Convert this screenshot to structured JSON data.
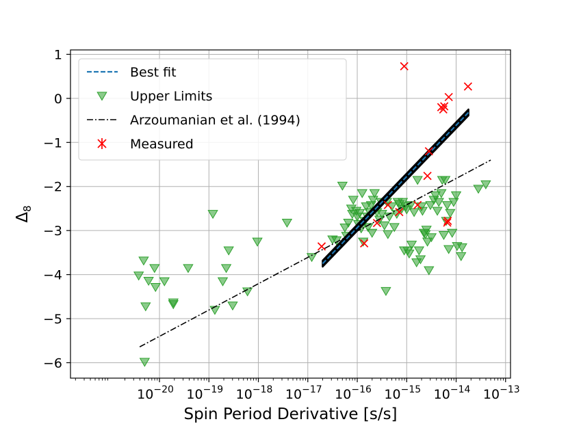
{
  "chart_data": {
    "type": "scatter",
    "title": "",
    "xlabel": "Spin Period Derivative [s/s]",
    "ylabel": "Δ8",
    "ylabel_main": "Δ",
    "ylabel_sub": "8",
    "xscale": "log",
    "xlim_exp": [
      -21.8,
      -12.9
    ],
    "ylim": [
      -6.35,
      1.1
    ],
    "grid": true,
    "x_ticks": [
      {
        "exp": -20,
        "label": "10",
        "sup": "−20"
      },
      {
        "exp": -19,
        "label": "10",
        "sup": "−19"
      },
      {
        "exp": -18,
        "label": "10",
        "sup": "−18"
      },
      {
        "exp": -17,
        "label": "10",
        "sup": "−17"
      },
      {
        "exp": -16,
        "label": "10",
        "sup": "−16"
      },
      {
        "exp": -15,
        "label": "10",
        "sup": "−15"
      },
      {
        "exp": -14,
        "label": "10",
        "sup": "−14"
      },
      {
        "exp": -13,
        "label": "10",
        "sup": "−13"
      }
    ],
    "y_ticks": [
      {
        "value": 1,
        "label": "1"
      },
      {
        "value": 0,
        "label": "0"
      },
      {
        "value": -1,
        "label": "−1"
      },
      {
        "value": -2,
        "label": "−2"
      },
      {
        "value": -3,
        "label": "−3"
      },
      {
        "value": -4,
        "label": "−4"
      },
      {
        "value": -5,
        "label": "−5"
      },
      {
        "value": -6,
        "label": "−6"
      }
    ],
    "legend": {
      "position": "top-left",
      "entries": [
        {
          "key": "best_fit",
          "label": "Best fit"
        },
        {
          "key": "upper_limits",
          "label": "Upper Limits"
        },
        {
          "key": "arzoumanian",
          "label": "Arzoumanian et al. (1994)"
        },
        {
          "key": "measured",
          "label": "Measured"
        }
      ]
    },
    "series": [
      {
        "name": "Best fit",
        "key": "best_fit",
        "kind": "band-line",
        "color": "#1f77b4",
        "band_color": "#000000",
        "x_exp": [
          -16.7,
          -13.75
        ],
        "y": [
          -3.75,
          -0.32
        ],
        "band_halfwidth": 0.07
      },
      {
        "name": "Upper Limits",
        "key": "upper_limits",
        "kind": "markers",
        "marker": "triangle-down",
        "color": "#2ca02c",
        "points": [
          [
            -20.42,
            -4.02
          ],
          [
            -20.32,
            -3.68
          ],
          [
            -20.28,
            -4.72
          ],
          [
            -20.3,
            -5.98
          ],
          [
            -20.22,
            -4.14
          ],
          [
            -20.1,
            -3.85
          ],
          [
            -20.08,
            -4.28
          ],
          [
            -19.9,
            -4.15
          ],
          [
            -19.72,
            -4.63
          ],
          [
            -19.72,
            -4.67
          ],
          [
            -19.42,
            -3.85
          ],
          [
            -18.92,
            -2.62
          ],
          [
            -18.88,
            -4.8
          ],
          [
            -18.72,
            -4.15
          ],
          [
            -18.65,
            -3.85
          ],
          [
            -18.6,
            -3.45
          ],
          [
            -18.52,
            -4.7
          ],
          [
            -18.22,
            -4.38
          ],
          [
            -18.02,
            -3.25
          ],
          [
            -17.42,
            -2.82
          ],
          [
            -16.92,
            -3.6
          ],
          [
            -16.5,
            -3.2
          ],
          [
            -16.42,
            -3.22
          ],
          [
            -16.3,
            -1.98
          ],
          [
            -16.25,
            -2.93
          ],
          [
            -16.22,
            -3.12
          ],
          [
            -16.18,
            -2.82
          ],
          [
            -16.12,
            -2.5
          ],
          [
            -16.1,
            -2.62
          ],
          [
            -16.08,
            -2.3
          ],
          [
            -16.02,
            -2.55
          ],
          [
            -16,
            -2.68
          ],
          [
            -15.98,
            -2.85
          ],
          [
            -15.95,
            -2.6
          ],
          [
            -15.92,
            -2.95
          ],
          [
            -15.9,
            -2.15
          ],
          [
            -15.88,
            -3.25
          ],
          [
            -15.85,
            -2.78
          ],
          [
            -15.82,
            -2.45
          ],
          [
            -15.8,
            -2.68
          ],
          [
            -15.78,
            -2.92
          ],
          [
            -15.75,
            -2.58
          ],
          [
            -15.72,
            -2.42
          ],
          [
            -15.7,
            -3.05
          ],
          [
            -15.68,
            -2.3
          ],
          [
            -15.65,
            -2.15
          ],
          [
            -15.6,
            -2.58
          ],
          [
            -15.55,
            -2.75
          ],
          [
            -15.52,
            -2.35
          ],
          [
            -15.5,
            -2.62
          ],
          [
            -15.45,
            -2.88
          ],
          [
            -15.42,
            -4.37
          ],
          [
            -15.4,
            -2.35
          ],
          [
            -15.38,
            -3.08
          ],
          [
            -15.35,
            -2.68
          ],
          [
            -15.3,
            -2.45
          ],
          [
            -15.25,
            -2.92
          ],
          [
            -15.2,
            -2.62
          ],
          [
            -15.18,
            -2.35
          ],
          [
            -15.15,
            -2.4
          ],
          [
            -15.1,
            -2.5
          ],
          [
            -15.08,
            -2.35
          ],
          [
            -15.05,
            -3.45
          ],
          [
            -15.02,
            -2.45
          ],
          [
            -15,
            -2.52
          ],
          [
            -14.98,
            -3.45
          ],
          [
            -14.95,
            -3.52
          ],
          [
            -14.92,
            -2.42
          ],
          [
            -14.9,
            -3.32
          ],
          [
            -14.85,
            -2.58
          ],
          [
            -14.8,
            -3.72
          ],
          [
            -14.78,
            -1.85
          ],
          [
            -14.75,
            -3.45
          ],
          [
            -14.72,
            -3.65
          ],
          [
            -14.7,
            -2.45
          ],
          [
            -14.68,
            -2.55
          ],
          [
            -14.65,
            -3.05
          ],
          [
            -14.62,
            -3.08
          ],
          [
            -14.6,
            -2.98
          ],
          [
            -14.58,
            -3.25
          ],
          [
            -14.55,
            -3.9
          ],
          [
            -14.52,
            -2.42
          ],
          [
            -14.5,
            -3.15
          ],
          [
            -14.45,
            -2.3
          ],
          [
            -14.42,
            -2.2
          ],
          [
            -14.38,
            -2.55
          ],
          [
            -14.35,
            -2.35
          ],
          [
            -14.3,
            -2.15
          ],
          [
            -14.28,
            -1.85
          ],
          [
            -14.25,
            -3.1
          ],
          [
            -14.22,
            -1.85
          ],
          [
            -14.2,
            -2.78
          ],
          [
            -14.18,
            -2.42
          ],
          [
            -14.15,
            -3.42
          ],
          [
            -14.12,
            -2.6
          ],
          [
            -14.08,
            -3.05
          ],
          [
            -14.05,
            -2.35
          ],
          [
            -14,
            -2.2
          ],
          [
            -13.98,
            -3.35
          ],
          [
            -13.9,
            -3.58
          ],
          [
            -13.88,
            -3.38
          ],
          [
            -13.55,
            -2.05
          ],
          [
            -13.4,
            -1.95
          ]
        ]
      },
      {
        "name": "Arzoumanian et al. (1994)",
        "key": "arzoumanian",
        "kind": "line",
        "color": "#000000",
        "x_exp": [
          -20.4,
          -13.3
        ],
        "y": [
          -5.64,
          -1.4
        ]
      },
      {
        "name": "Measured",
        "key": "measured",
        "kind": "markers",
        "marker": "x",
        "color": "#ff0000",
        "points": [
          [
            -16.72,
            -3.36
          ],
          [
            -15.86,
            -3.29
          ],
          [
            -15.6,
            -2.83
          ],
          [
            -15.38,
            -2.42
          ],
          [
            -15.15,
            -2.58
          ],
          [
            -14.78,
            -2.42
          ],
          [
            -14.58,
            -1.76
          ],
          [
            -14.55,
            -1.2
          ],
          [
            -14.26,
            -0.25
          ],
          [
            -14.24,
            -0.18
          ],
          [
            -14.17,
            -2.78
          ],
          [
            -14.15,
            0.03
          ],
          [
            -14.3,
            -0.2
          ],
          [
            -15.05,
            0.73
          ],
          [
            -13.76,
            0.27
          ],
          [
            -14.18,
            -2.82
          ]
        ]
      }
    ]
  }
}
